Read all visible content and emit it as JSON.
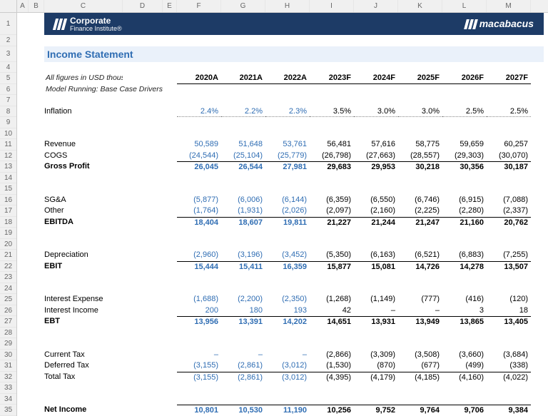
{
  "banner": {
    "left1": "Corporate",
    "left2": "Finance Institute",
    "reg": "®",
    "right": "macabacus"
  },
  "title": "Income Statement",
  "notes": {
    "line1": "All figures in USD thousands unless stated",
    "line2": "Model Running: Base Case Drivers"
  },
  "years": [
    "2020A",
    "2021A",
    "2022A",
    "2023F",
    "2024F",
    "2025F",
    "2026F",
    "2027F"
  ],
  "rows": {
    "inflation": {
      "label": "Inflation",
      "vals": [
        "2.4%",
        "2.2%",
        "2.3%",
        "3.5%",
        "3.0%",
        "3.0%",
        "2.5%",
        "2.5%"
      ]
    },
    "revenue": {
      "label": "Revenue",
      "vals": [
        "50,589",
        "51,648",
        "53,761",
        "56,481",
        "57,616",
        "58,775",
        "59,659",
        "60,257"
      ]
    },
    "cogs": {
      "label": "COGS",
      "vals": [
        "(24,544)",
        "(25,104)",
        "(25,779)",
        "(26,798)",
        "(27,663)",
        "(28,557)",
        "(29,303)",
        "(30,070)"
      ]
    },
    "gross": {
      "label": "Gross Profit",
      "vals": [
        "26,045",
        "26,544",
        "27,981",
        "29,683",
        "29,953",
        "30,218",
        "30,356",
        "30,187"
      ]
    },
    "sga": {
      "label": "SG&A",
      "vals": [
        "(5,877)",
        "(6,006)",
        "(6,144)",
        "(6,359)",
        "(6,550)",
        "(6,746)",
        "(6,915)",
        "(7,088)"
      ]
    },
    "other": {
      "label": "Other",
      "vals": [
        "(1,764)",
        "(1,931)",
        "(2,026)",
        "(2,097)",
        "(2,160)",
        "(2,225)",
        "(2,280)",
        "(2,337)"
      ]
    },
    "ebitda": {
      "label": "EBITDA",
      "vals": [
        "18,404",
        "18,607",
        "19,811",
        "21,227",
        "21,244",
        "21,247",
        "21,160",
        "20,762"
      ]
    },
    "dep": {
      "label": "Depreciation",
      "vals": [
        "(2,960)",
        "(3,196)",
        "(3,452)",
        "(5,350)",
        "(6,163)",
        "(6,521)",
        "(6,883)",
        "(7,255)"
      ]
    },
    "ebit": {
      "label": "EBIT",
      "vals": [
        "15,444",
        "15,411",
        "16,359",
        "15,877",
        "15,081",
        "14,726",
        "14,278",
        "13,507"
      ]
    },
    "intexp": {
      "label": "Interest Expense",
      "vals": [
        "(1,688)",
        "(2,200)",
        "(2,350)",
        "(1,268)",
        "(1,149)",
        "(777)",
        "(416)",
        "(120)"
      ]
    },
    "intinc": {
      "label": "Interest Income",
      "vals": [
        "200",
        "180",
        "193",
        "42",
        "–",
        "–",
        "3",
        "18"
      ]
    },
    "ebt": {
      "label": "EBT",
      "vals": [
        "13,956",
        "13,391",
        "14,202",
        "14,651",
        "13,931",
        "13,949",
        "13,865",
        "13,405"
      ]
    },
    "curtax": {
      "label": "Current Tax",
      "vals": [
        "–",
        "–",
        "–",
        "(2,866)",
        "(3,309)",
        "(3,508)",
        "(3,660)",
        "(3,684)"
      ]
    },
    "deftax": {
      "label": "Deferred Tax",
      "vals": [
        "(3,155)",
        "(2,861)",
        "(3,012)",
        "(1,530)",
        "(870)",
        "(677)",
        "(499)",
        "(338)"
      ]
    },
    "tottax": {
      "label": "Total Tax",
      "vals": [
        "(3,155)",
        "(2,861)",
        "(3,012)",
        "(4,395)",
        "(4,179)",
        "(4,185)",
        "(4,160)",
        "(4,022)"
      ]
    },
    "ni": {
      "label": "Net Income",
      "vals": [
        "10,801",
        "10,530",
        "11,190",
        "10,256",
        "9,752",
        "9,764",
        "9,706",
        "9,384"
      ]
    }
  },
  "colLetters": [
    "A",
    "B",
    "C",
    "D",
    "E",
    "F",
    "G",
    "H",
    "I",
    "J",
    "K",
    "L",
    "M"
  ],
  "histCount": 3,
  "colors": {
    "banner": "#1d3b66",
    "title_bg": "#eaf1fa",
    "title_fg": "#2f6db3",
    "hist": "#2f6db3"
  }
}
